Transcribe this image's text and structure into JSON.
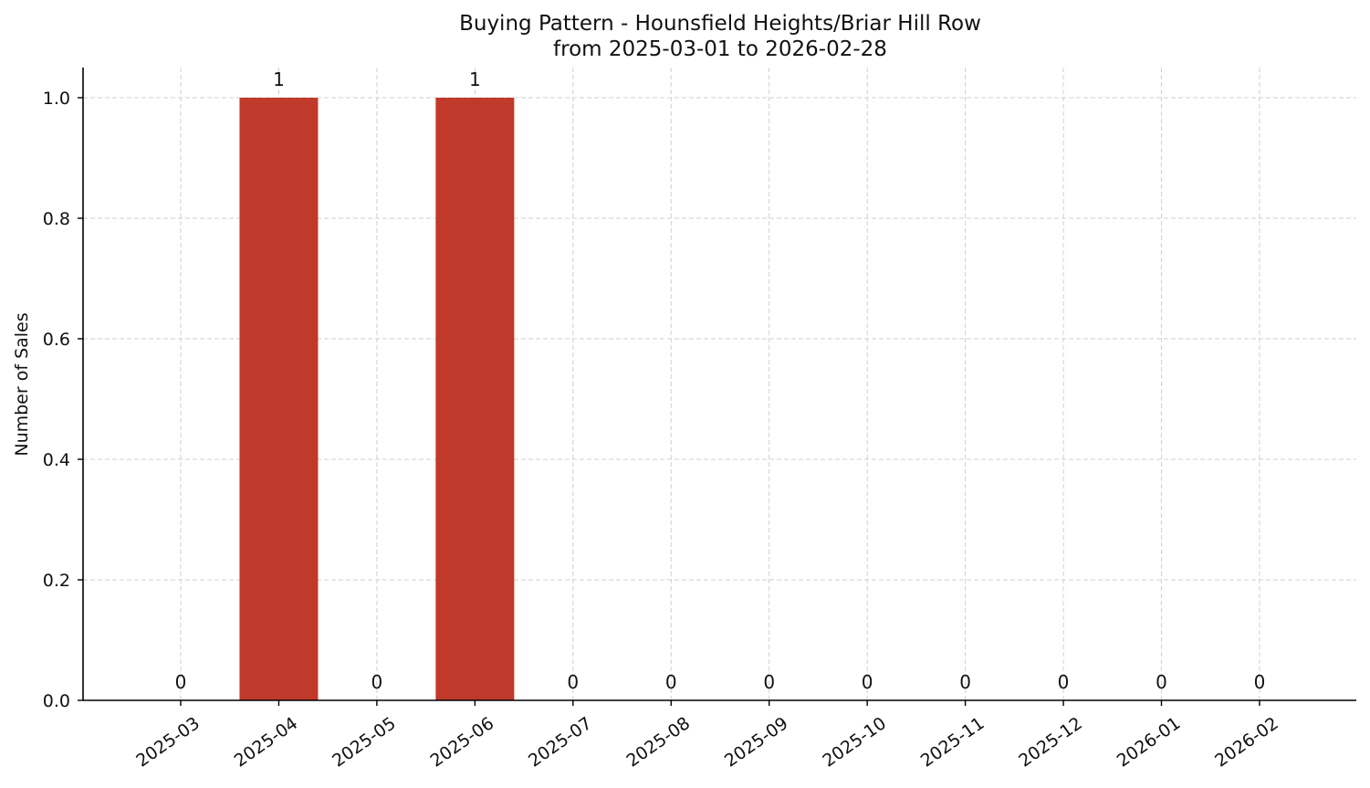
{
  "chart_data": {
    "type": "bar",
    "title": "Buying Pattern - Hounsfield Heights/Briar Hill Row",
    "subtitle": "from 2025-03-01 to 2026-02-28",
    "xlabel": "",
    "ylabel": "Number of Sales",
    "categories": [
      "2025-03",
      "2025-04",
      "2025-05",
      "2025-06",
      "2025-07",
      "2025-08",
      "2025-09",
      "2025-10",
      "2025-11",
      "2025-12",
      "2026-01",
      "2026-02"
    ],
    "values": [
      0,
      1,
      0,
      1,
      0,
      0,
      0,
      0,
      0,
      0,
      0,
      0
    ],
    "data_labels": [
      "0",
      "1",
      "0",
      "1",
      "0",
      "0",
      "0",
      "0",
      "0",
      "0",
      "0",
      "0"
    ],
    "ylim": [
      0,
      1.05
    ],
    "yticks": [
      "0.0",
      "0.2",
      "0.4",
      "0.6",
      "0.8",
      "1.0"
    ],
    "grid": true,
    "bar_color": "#c0392b"
  }
}
